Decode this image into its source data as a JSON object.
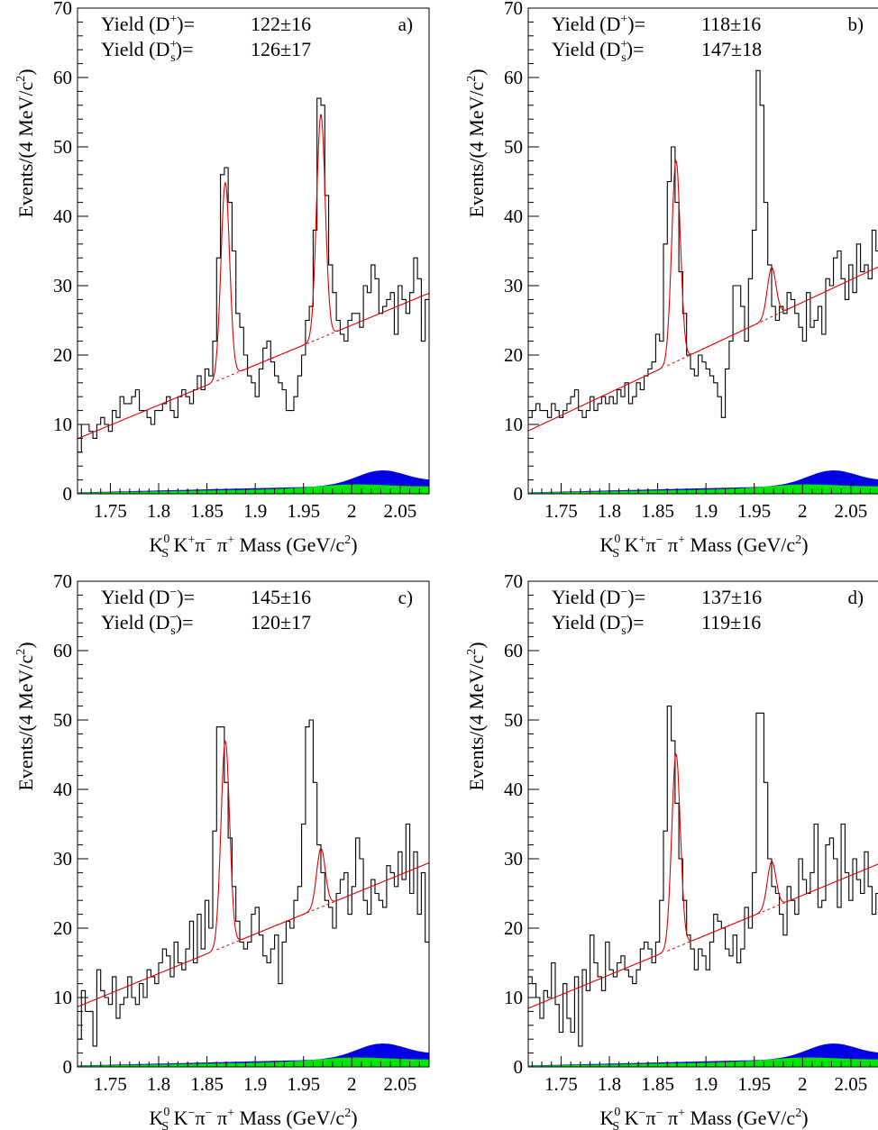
{
  "colors": {
    "histogram": "#000000",
    "fit": "#e00000",
    "background_blue": "#0000e6",
    "background_green": "#00e600"
  },
  "chart_data": [
    {
      "type": "bar",
      "panel": "a)",
      "ylabel_parts": {
        "main": "Events/(4 MeV/c",
        "sup": "2",
        "end": ")"
      },
      "xlabel_parts": {
        "k": "K",
        "k_sub": "S",
        "k_sup": "0",
        "rest": " K",
        "kp_sup": "+",
        "pi1": "π",
        "pi1_sup": "−",
        "pi2": " π",
        "pi2_sup": "+",
        "tail": " Mass (GeV/c",
        "tail_sup": "2",
        "close": ")"
      },
      "yields": [
        {
          "pre": "Yield (D",
          "sup": "+",
          "sub": "",
          "post": ")=",
          "value": "122±16"
        },
        {
          "pre": "Yield (D",
          "sup": "+",
          "sub": "s",
          "post": ")=",
          "value": "126±17"
        }
      ],
      "xlim": [
        1.716,
        2.08
      ],
      "ylim": [
        0,
        70
      ],
      "xticks": [
        1.75,
        1.8,
        1.85,
        1.9,
        1.95,
        2.0,
        2.05
      ],
      "xtick_labels": [
        "1.75",
        "1.8",
        "1.85",
        "1.9",
        "1.95",
        "2",
        "2.05"
      ],
      "yticks": [
        0,
        10,
        20,
        30,
        40,
        50,
        60,
        70
      ],
      "ytick_labels": [
        "0",
        "10",
        "20",
        "30",
        "40",
        "50",
        "60",
        "70"
      ],
      "bin_width": 0.004,
      "counts": [
        6,
        10,
        10,
        9,
        8,
        10,
        11,
        10,
        9,
        12,
        11,
        14,
        13,
        13,
        14,
        15,
        12,
        12,
        11,
        10,
        12,
        12,
        13,
        14,
        12,
        11,
        14,
        15,
        14,
        13,
        15,
        17,
        15,
        18,
        17,
        22,
        34,
        46,
        47,
        42,
        35,
        26,
        24,
        20,
        17,
        16,
        14,
        18,
        21,
        22,
        19,
        17,
        16,
        15,
        12,
        12,
        14,
        17,
        20,
        25,
        27,
        38,
        57,
        56,
        43,
        33,
        29,
        25,
        23,
        22,
        25,
        26,
        26,
        24,
        30,
        29,
        33,
        31,
        26,
        27,
        28,
        29,
        23,
        30,
        28,
        26,
        29,
        34,
        31,
        22,
        28
      ]
    },
    {
      "type": "bar",
      "panel": "b)",
      "ylabel_parts": {
        "main": "Events/(4 MeV/c",
        "sup": "2",
        "end": ")"
      },
      "xlabel_parts": {
        "k": "K",
        "k_sub": "S",
        "k_sup": "0",
        "rest": " K",
        "kp_sup": "+",
        "pi1": "π",
        "pi1_sup": "−",
        "pi2": " π",
        "pi2_sup": "+",
        "tail": " Mass (GeV/c",
        "tail_sup": "2",
        "close": ")"
      },
      "yields": [
        {
          "pre": "Yield (D",
          "sup": "+",
          "sub": "",
          "post": ")=",
          "value": "118±16"
        },
        {
          "pre": "Yield (D",
          "sup": "+",
          "sub": "s",
          "post": ")=",
          "value": "147±18"
        }
      ],
      "xlim": [
        1.716,
        2.08
      ],
      "ylim": [
        0,
        70
      ],
      "xticks": [
        1.75,
        1.8,
        1.85,
        1.9,
        1.95,
        2.0,
        2.05
      ],
      "xtick_labels": [
        "1.75",
        "1.8",
        "1.85",
        "1.9",
        "1.95",
        "2",
        "2.05"
      ],
      "yticks": [
        0,
        10,
        20,
        30,
        40,
        50,
        60,
        70
      ],
      "ytick_labels": [
        "0",
        "10",
        "20",
        "30",
        "40",
        "50",
        "60",
        "70"
      ],
      "bin_width": 0.004,
      "counts": [
        11,
        12,
        13,
        12,
        12,
        11,
        13,
        12,
        11,
        12,
        13,
        14,
        15,
        12,
        11,
        12,
        14,
        12,
        13,
        14,
        13,
        14,
        13,
        15,
        14,
        16,
        13,
        14,
        16,
        15,
        17,
        18,
        19,
        23,
        22,
        36,
        45,
        50,
        42,
        32,
        26,
        20,
        18,
        17,
        20,
        19,
        18,
        17,
        16,
        14,
        11,
        18,
        22,
        30,
        30,
        27,
        22,
        31,
        38,
        61,
        56,
        42,
        33,
        27,
        25,
        27,
        26,
        29,
        28,
        26,
        24,
        22,
        29,
        24,
        25,
        27,
        23,
        31,
        30,
        34,
        35,
        31,
        28,
        33,
        29,
        36,
        32,
        33,
        31,
        38,
        35
      ]
    },
    {
      "type": "bar",
      "panel": "c)",
      "ylabel_parts": {
        "main": "Events/(4 MeV/c",
        "sup": "2",
        "end": ")"
      },
      "xlabel_parts": {
        "k": "K",
        "k_sub": "S",
        "k_sup": "0",
        "rest": " K",
        "kp_sup": "−",
        "pi1": "π",
        "pi1_sup": "−",
        "pi2": " π",
        "pi2_sup": "+",
        "tail": " Mass (GeV/c",
        "tail_sup": "2",
        "close": ")"
      },
      "yields": [
        {
          "pre": "Yield (D",
          "sup": "−",
          "sub": "",
          "post": ")=",
          "value": "145±16"
        },
        {
          "pre": "Yield (D",
          "sup": "−",
          "sub": "s",
          "post": ")=",
          "value": "120±17"
        }
      ],
      "xlim": [
        1.716,
        2.08
      ],
      "ylim": [
        0,
        70
      ],
      "xticks": [
        1.75,
        1.8,
        1.85,
        1.9,
        1.95,
        2.0,
        2.05
      ],
      "xtick_labels": [
        "1.75",
        "1.8",
        "1.85",
        "1.9",
        "1.95",
        "2",
        "2.05"
      ],
      "yticks": [
        0,
        10,
        20,
        30,
        40,
        50,
        60,
        70
      ],
      "ytick_labels": [
        "0",
        "10",
        "20",
        "30",
        "40",
        "50",
        "60",
        "70"
      ],
      "bin_width": 0.004,
      "counts": [
        4,
        11,
        8,
        8,
        3,
        14,
        11,
        10,
        9,
        13,
        7,
        9,
        10,
        13,
        10,
        9,
        12,
        10,
        14,
        13,
        12,
        15,
        17,
        16,
        13,
        18,
        15,
        14,
        17,
        21,
        15,
        22,
        17,
        24,
        20,
        34,
        49,
        49,
        41,
        33,
        26,
        21,
        18,
        17,
        18,
        22,
        23,
        19,
        16,
        15,
        17,
        19,
        12,
        18,
        21,
        20,
        24,
        26,
        35,
        49,
        50,
        41,
        32,
        28,
        24,
        23,
        20,
        25,
        27,
        28,
        22,
        26,
        33,
        30,
        24,
        22,
        27,
        25,
        24,
        23,
        29,
        28,
        26,
        31,
        27,
        35,
        25,
        31,
        22,
        28,
        18
      ]
    },
    {
      "type": "bar",
      "panel": "d)",
      "ylabel_parts": {
        "main": "Events/(4 MeV/c",
        "sup": "2",
        "end": ")"
      },
      "xlabel_parts": {
        "k": "K",
        "k_sub": "S",
        "k_sup": "0",
        "rest": " K",
        "kp_sup": "−",
        "pi1": "π",
        "pi1_sup": "−",
        "pi2": " π",
        "pi2_sup": "+",
        "tail": " Mass (GeV/c",
        "tail_sup": "2",
        "close": ")"
      },
      "yields": [
        {
          "pre": "Yield (D",
          "sup": "−",
          "sub": "",
          "post": ")=",
          "value": "137±16"
        },
        {
          "pre": "Yield (D",
          "sup": "−",
          "sub": "s",
          "post": ")=",
          "value": "119±16"
        }
      ],
      "xlim": [
        1.716,
        2.08
      ],
      "ylim": [
        0,
        70
      ],
      "xticks": [
        1.75,
        1.8,
        1.85,
        1.9,
        1.95,
        2.0,
        2.05
      ],
      "xtick_labels": [
        "1.75",
        "1.8",
        "1.85",
        "1.9",
        "1.95",
        "2",
        "2.05"
      ],
      "yticks": [
        0,
        10,
        20,
        30,
        40,
        50,
        60,
        70
      ],
      "ytick_labels": [
        "0",
        "10",
        "20",
        "30",
        "40",
        "50",
        "60",
        "70"
      ],
      "bin_width": 0.004,
      "counts": [
        13,
        12,
        10,
        7,
        11,
        10,
        15,
        9,
        5,
        12,
        7,
        5,
        13,
        3,
        14,
        11,
        19,
        15,
        13,
        11,
        18,
        14,
        13,
        15,
        16,
        14,
        13,
        12,
        14,
        17,
        18,
        17,
        15,
        18,
        24,
        34,
        52,
        47,
        38,
        30,
        24,
        19,
        17,
        14,
        17,
        16,
        14,
        18,
        22,
        21,
        20,
        17,
        16,
        19,
        15,
        17,
        23,
        20,
        28,
        51,
        51,
        41,
        30,
        26,
        25,
        22,
        19,
        26,
        24,
        22,
        30,
        27,
        25,
        28,
        35,
        23,
        24,
        32,
        33,
        30,
        23,
        35,
        28,
        24,
        30,
        27,
        25,
        31,
        26,
        22,
        25
      ]
    }
  ]
}
